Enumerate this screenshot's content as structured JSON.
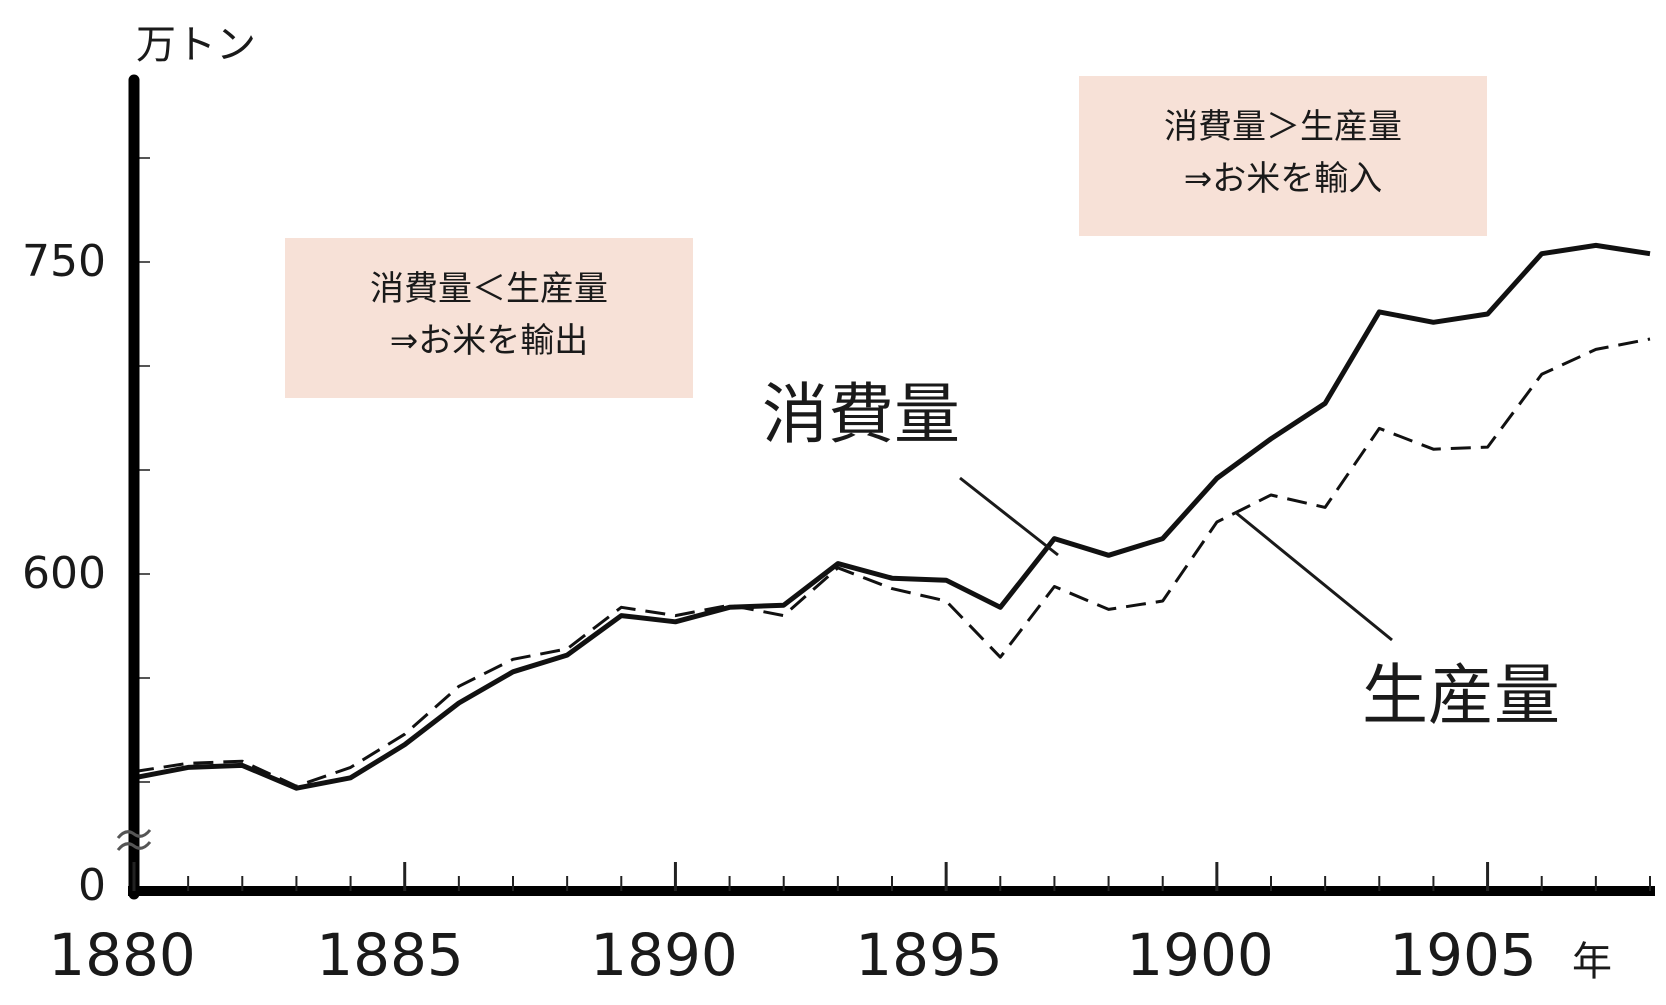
{
  "chart_data": {
    "type": "line",
    "y_unit": "万トン",
    "x_unit": "年",
    "x_ticks": [
      "1880",
      "1885",
      "1890",
      "1895",
      "1900",
      "1905"
    ],
    "y_ticks": [
      "0",
      "600",
      "750"
    ],
    "xlim": [
      1880,
      1908
    ],
    "ylim_visible": [
      448,
      830
    ],
    "y_axis_break": true,
    "grid": false,
    "series": [
      {
        "name": "消費量",
        "style": "solid",
        "color": "#111111",
        "x": [
          1880,
          1881,
          1882,
          1883,
          1884,
          1885,
          1886,
          1887,
          1888,
          1889,
          1890,
          1891,
          1892,
          1893,
          1894,
          1895,
          1896,
          1897,
          1898,
          1899,
          1900,
          1901,
          1902,
          1903,
          1904,
          1905,
          1906,
          1907,
          1908
        ],
        "values": [
          502,
          507,
          508,
          497,
          502,
          518,
          538,
          553,
          561,
          580,
          577,
          584,
          585,
          605,
          598,
          597,
          584,
          617,
          609,
          617,
          646,
          665,
          682,
          726,
          721,
          725,
          754,
          758,
          754
        ]
      },
      {
        "name": "生産量",
        "style": "dashed",
        "color": "#111111",
        "x": [
          1880,
          1881,
          1882,
          1883,
          1884,
          1885,
          1886,
          1887,
          1888,
          1889,
          1890,
          1891,
          1892,
          1893,
          1894,
          1895,
          1896,
          1897,
          1898,
          1899,
          1900,
          1901,
          1902,
          1903,
          1904,
          1905,
          1906,
          1907,
          1908
        ],
        "values": [
          505,
          509,
          510,
          498,
          507,
          523,
          546,
          559,
          564,
          584,
          580,
          585,
          580,
          603,
          593,
          587,
          560,
          594,
          583,
          587,
          625,
          638,
          632,
          670,
          660,
          661,
          696,
          708,
          713
        ]
      }
    ],
    "annotations": [
      {
        "id": "left",
        "lines": [
          "消費量＜生産量",
          "⇒お米を輸出"
        ],
        "bg": "#f7e1d7"
      },
      {
        "id": "right",
        "lines": [
          "消費量＞生産量",
          "⇒お米を輸入"
        ],
        "bg": "#f7e1d7"
      }
    ],
    "series_labels": {
      "consumption": "消費量",
      "production": "生産量"
    }
  }
}
